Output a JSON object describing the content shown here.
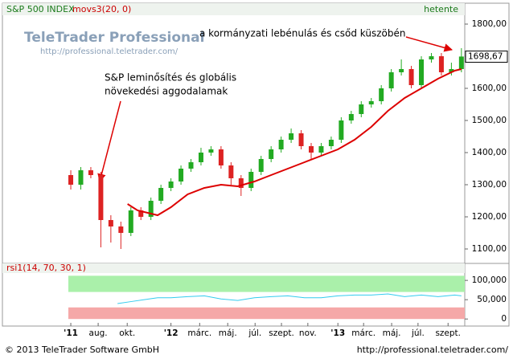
{
  "chart_data": [
    {
      "type": "candlestick",
      "title": "S&P 500 INDEX",
      "indicator": "movs3(20, 0)",
      "period": "hetente",
      "logo": "TeleTrader Professional",
      "logo_url": "http://professional.teletrader.com/",
      "annotations": [
        "a kormányzati lebénulás és csőd küszöbén",
        "S&P leminősítés és globális",
        "növekedési aggodalamak"
      ],
      "xlim": [
        0,
        138
      ],
      "xticks": [
        {
          "value": 20,
          "label": "'11"
        },
        {
          "value": 28.2,
          "label": "aug."
        },
        {
          "value": 36.9,
          "label": "okt."
        },
        {
          "value": 50,
          "label": "'12"
        },
        {
          "value": 58.6,
          "label": "márc."
        },
        {
          "value": 67,
          "label": "máj."
        },
        {
          "value": 75.2,
          "label": "júl."
        },
        {
          "value": 83.1,
          "label": "szept."
        },
        {
          "value": 91,
          "label": "nov."
        },
        {
          "value": 100,
          "label": "'13"
        },
        {
          "value": 107.7,
          "label": "márc."
        },
        {
          "value": 116.1,
          "label": "máj."
        },
        {
          "value": 124,
          "label": "júl."
        },
        {
          "value": 133,
          "label": "szept."
        }
      ],
      "ylim": [
        1070,
        1825
      ],
      "yticks": [
        {
          "value": 1100,
          "label": "1100,00"
        },
        {
          "value": 1200,
          "label": "1200,00"
        },
        {
          "value": 1300,
          "label": "1300,00"
        },
        {
          "value": 1400,
          "label": "1400,00"
        },
        {
          "value": 1500,
          "label": "1500,00"
        },
        {
          "value": 1600,
          "label": "1600,00"
        },
        {
          "value": 1700,
          "label": "1700,00"
        },
        {
          "value": 1800,
          "label": "1800,00"
        }
      ],
      "last": {
        "value": 1698.67,
        "label": "1698,67"
      },
      "up_color": "#22aa22",
      "down_color": "#dd2222",
      "x": [
        20,
        23,
        26,
        29,
        32,
        35,
        38,
        41,
        44,
        47,
        50,
        53,
        56,
        59,
        62,
        65,
        68,
        71,
        74,
        77,
        80,
        83,
        86,
        89,
        92,
        95,
        98,
        101,
        104,
        107,
        110,
        113,
        116,
        119,
        122,
        125,
        128,
        131,
        134,
        137
      ],
      "open": [
        1330,
        1300,
        1345,
        1330,
        1190,
        1170,
        1150,
        1220,
        1200,
        1250,
        1290,
        1310,
        1350,
        1370,
        1400,
        1410,
        1360,
        1320,
        1290,
        1340,
        1380,
        1410,
        1440,
        1460,
        1420,
        1400,
        1420,
        1440,
        1500,
        1520,
        1550,
        1560,
        1600,
        1650,
        1660,
        1610,
        1690,
        1700,
        1650,
        1660
      ],
      "high": [
        1345,
        1355,
        1355,
        1340,
        1205,
        1185,
        1230,
        1230,
        1260,
        1300,
        1320,
        1360,
        1380,
        1415,
        1420,
        1420,
        1370,
        1330,
        1350,
        1390,
        1420,
        1450,
        1475,
        1470,
        1430,
        1430,
        1450,
        1510,
        1530,
        1560,
        1570,
        1610,
        1660,
        1690,
        1670,
        1700,
        1710,
        1710,
        1680,
        1725
      ],
      "low": [
        1285,
        1285,
        1320,
        1105,
        1120,
        1100,
        1140,
        1190,
        1190,
        1240,
        1280,
        1300,
        1340,
        1360,
        1390,
        1350,
        1300,
        1265,
        1280,
        1330,
        1370,
        1400,
        1430,
        1410,
        1380,
        1390,
        1410,
        1430,
        1490,
        1510,
        1540,
        1550,
        1590,
        1640,
        1600,
        1600,
        1680,
        1640,
        1640,
        1650
      ],
      "close": [
        1300,
        1345,
        1330,
        1190,
        1170,
        1150,
        1220,
        1200,
        1250,
        1290,
        1310,
        1350,
        1370,
        1400,
        1410,
        1360,
        1320,
        1290,
        1340,
        1380,
        1410,
        1440,
        1460,
        1420,
        1400,
        1420,
        1440,
        1500,
        1520,
        1550,
        1560,
        1600,
        1650,
        1660,
        1610,
        1690,
        1700,
        1650,
        1660,
        1699
      ],
      "ma": {
        "color": "#dd0000",
        "x": [
          37,
          40,
          46,
          50,
          55,
          60,
          65,
          70,
          75,
          80,
          85,
          90,
          95,
          100,
          105,
          110,
          115,
          120,
          125,
          130,
          135,
          137
        ],
        "values": [
          1240,
          1220,
          1205,
          1230,
          1270,
          1290,
          1300,
          1295,
          1310,
          1330,
          1350,
          1370,
          1390,
          1410,
          1440,
          1480,
          1530,
          1570,
          1600,
          1630,
          1655,
          1660
        ]
      }
    },
    {
      "type": "line",
      "title": "rsi1(14, 70, 30, 1)",
      "overbought": 70,
      "oversold": 30,
      "color": "#33ccee",
      "ylim": [
        -10,
        119
      ],
      "yticks": [
        {
          "value": 100,
          "label": "100,000"
        },
        {
          "value": 50,
          "label": "50,000"
        },
        0
      ],
      "x": [
        34,
        38,
        42,
        46,
        50,
        55,
        60,
        65,
        70,
        75,
        80,
        85,
        90,
        95,
        100,
        105,
        110,
        115,
        120,
        125,
        130,
        135,
        137
      ],
      "values": [
        40,
        45,
        50,
        55,
        55,
        58,
        60,
        52,
        48,
        55,
        58,
        60,
        55,
        55,
        60,
        62,
        62,
        65,
        58,
        62,
        58,
        62,
        60
      ]
    }
  ],
  "footer": {
    "left": "© 2013 TeleTrader Software GmbH",
    "right": "http://professional.teletrader.com/"
  }
}
